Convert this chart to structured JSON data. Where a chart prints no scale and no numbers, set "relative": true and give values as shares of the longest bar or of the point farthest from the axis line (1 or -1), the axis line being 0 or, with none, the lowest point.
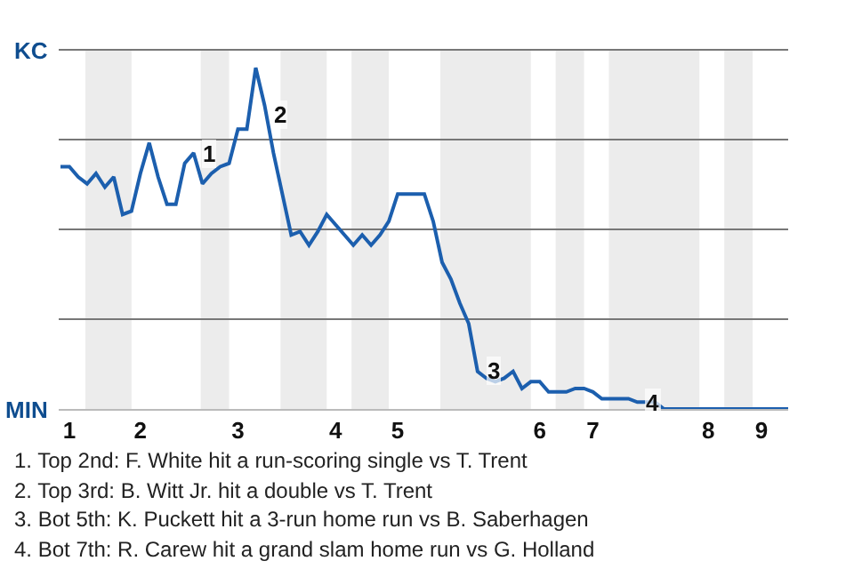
{
  "chart_data": {
    "type": "line",
    "relative": true,
    "categories": [
      null,
      "1",
      null,
      null,
      null,
      null,
      null,
      null,
      null,
      "2",
      null,
      null,
      null,
      null,
      null,
      null,
      null,
      null,
      null,
      null,
      "3",
      null,
      null,
      null,
      null,
      null,
      null,
      null,
      null,
      null,
      null,
      "4",
      null,
      null,
      null,
      null,
      null,
      null,
      "5",
      null,
      null,
      null,
      null,
      null,
      null,
      null,
      null,
      null,
      null,
      null,
      null,
      null,
      null,
      null,
      "6",
      null,
      null,
      null,
      null,
      null,
      "7",
      null,
      null,
      null,
      null,
      null,
      null,
      null,
      null,
      null,
      null,
      null,
      null,
      "8",
      null,
      null,
      null,
      null,
      null,
      "9",
      null,
      null,
      null
    ],
    "series": [
      {
        "color": "#1c5fae",
        "values": [
          0.71,
          0.71,
          0.68,
          0.66,
          0.69,
          0.65,
          0.68,
          0.57,
          0.58,
          0.69,
          0.78,
          0.68,
          0.6,
          0.6,
          0.72,
          0.75,
          0.66,
          0.69,
          0.71,
          0.72,
          0.82,
          0.82,
          1,
          0.89,
          0.75,
          0.63,
          0.51,
          0.52,
          0.48,
          0.52,
          0.57,
          0.54,
          0.51,
          0.48,
          0.51,
          0.48,
          0.51,
          0.55,
          0.63,
          0.63,
          0.63,
          0.63,
          0.55,
          0.43,
          0.38,
          0.31,
          0.25,
          0.11,
          0.09,
          0.08,
          0.09,
          0.11,
          0.06,
          0.08,
          0.08,
          0.05,
          0.05,
          0.05,
          0.06,
          0.06,
          0.05,
          0.03,
          0.03,
          0.03,
          0.03,
          0.02,
          0.02,
          0.02,
          0,
          0,
          0,
          0,
          0,
          0,
          0,
          0,
          0,
          0,
          0,
          0,
          0,
          0,
          0
        ]
      }
    ],
    "marker": "none",
    "line_style": "solid",
    "annotations": [
      "KC",
      "MIN",
      {
        "text": "1",
        "y": 0.75
      },
      {
        "text": "2",
        "y": 0.86
      },
      {
        "text": "3",
        "y": 0.11
      },
      {
        "text": "4",
        "y": 0.02
      },
      "1. Top 2nd: F. White hit a run-scoring single vs T. Trent",
      "2. Top 3rd: B. Witt Jr. hit a double vs T. Trent",
      "3. Bot 5th: K. Puckett hit a 3-run home run vs B. Saberhagen",
      "4. Bot 7th: R. Carew hit a grand slam home run vs G. Holland"
    ]
  }
}
